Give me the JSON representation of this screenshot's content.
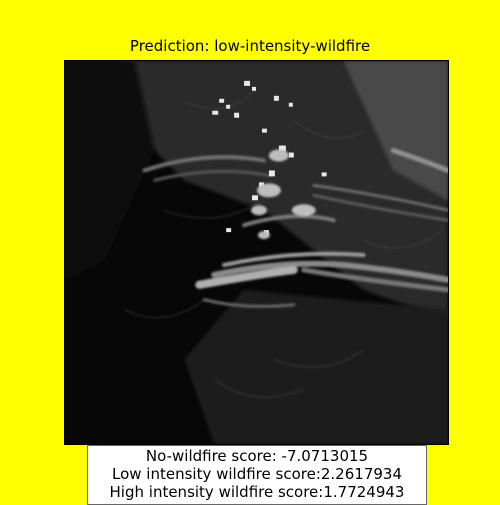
{
  "title": "Prediction: low-intensity-wildfire",
  "scores": [
    "No-wildfire score: -7.0713015",
    "Low intensity wildfire score:2.2617934",
    "High intensity wildfire score:1.7724943"
  ],
  "colors": {
    "background": "#ffff00",
    "image_background": "#050505",
    "box_background": "#ffffff"
  }
}
